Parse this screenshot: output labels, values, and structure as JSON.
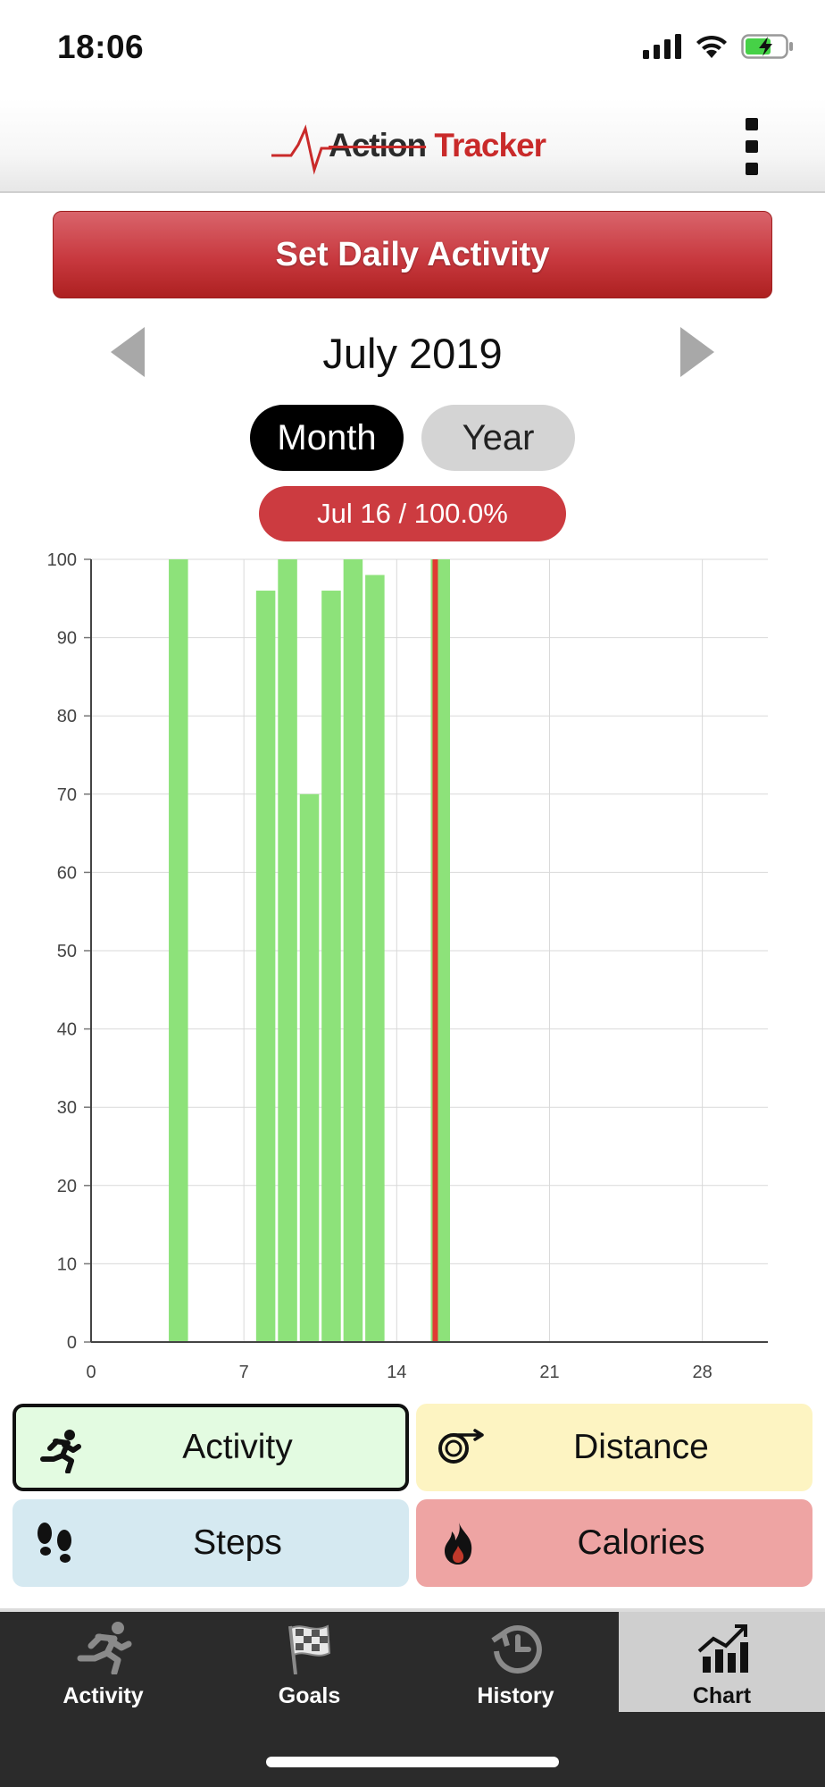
{
  "status_bar": {
    "time": "18:06"
  },
  "header": {
    "logo_word1": "Action",
    "logo_word2": "Tracker"
  },
  "set_activity_label": "Set Daily Activity",
  "month_nav": {
    "label": "July 2019"
  },
  "period_toggle": {
    "month_label": "Month",
    "year_label": "Year",
    "selected": "Month"
  },
  "selection_label": "Jul 16 / 100.0%",
  "chart_data": {
    "type": "bar",
    "x_ticks": [
      "0",
      "7",
      "14",
      "21",
      "28"
    ],
    "y_ticks": [
      "0",
      "10",
      "20",
      "30",
      "40",
      "50",
      "60",
      "70",
      "80",
      "90",
      "100"
    ],
    "xlim": [
      0,
      31
    ],
    "ylim": [
      0,
      100
    ],
    "grid": true,
    "bar_color": "#8de27a",
    "highlight_color": "#e03a33",
    "highlight_day": 16,
    "bars": [
      {
        "day": 4,
        "value": 100
      },
      {
        "day": 8,
        "value": 96
      },
      {
        "day": 9,
        "value": 100
      },
      {
        "day": 10,
        "value": 70
      },
      {
        "day": 11,
        "value": 96
      },
      {
        "day": 12,
        "value": 100
      },
      {
        "day": 13,
        "value": 98
      },
      {
        "day": 16,
        "value": 100
      }
    ]
  },
  "metrics": {
    "activity": {
      "label": "Activity",
      "icon": "running-icon",
      "color": "#e3fbe1",
      "selected": true
    },
    "distance": {
      "label": "Distance",
      "icon": "odometer-icon",
      "color": "#fdf4c2"
    },
    "steps": {
      "label": "Steps",
      "icon": "footprints-icon",
      "color": "#d5e9f1"
    },
    "calories": {
      "label": "Calories",
      "icon": "flame-icon",
      "color": "#eea4a3"
    }
  },
  "tabs": [
    {
      "label": "Activity",
      "icon": "running-icon"
    },
    {
      "label": "Goals",
      "icon": "checkered-flag-icon"
    },
    {
      "label": "History",
      "icon": "clock-history-icon"
    },
    {
      "label": "Chart",
      "icon": "growth-chart-icon",
      "active": true
    }
  ]
}
